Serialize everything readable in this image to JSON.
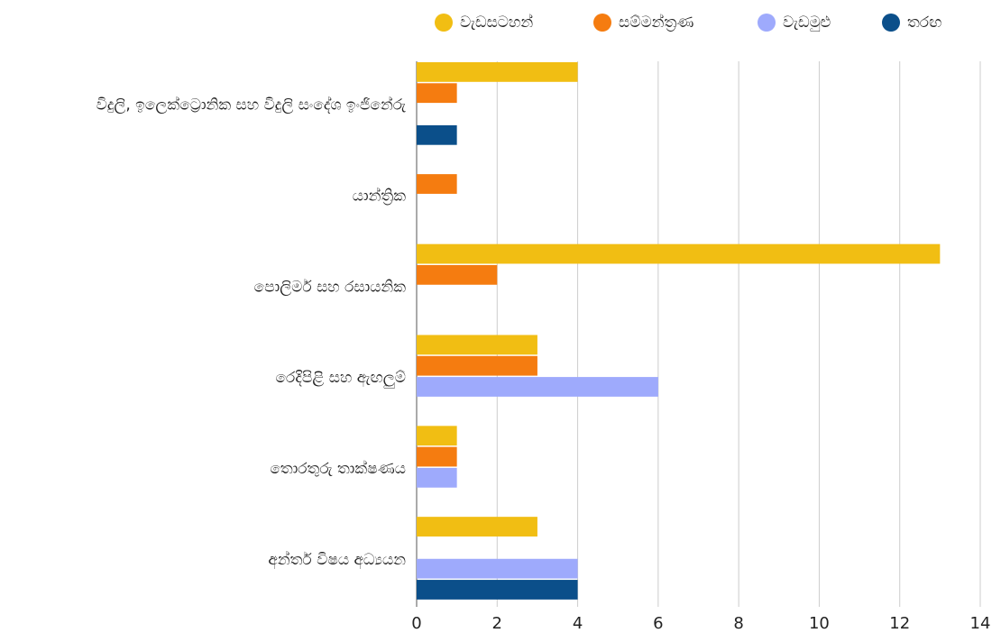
{
  "chart_data": {
    "type": "bar",
    "orientation": "horizontal",
    "categories": [
      "විදුලි, ඉලෙක්ට්‍රොනික සහ විදුලි සංදේශ ඉංජිනේරු",
      "යාන්ත්‍රික",
      "පොලිමර් සහ රසායනික",
      "රෙදිපිළි සහ ඇඟලුම්",
      "තොරතුරු තාක්ෂණය",
      "අන්තර් විෂය අධ්‍යයන"
    ],
    "series": [
      {
        "name": "වැඩසටහන්",
        "color": "#f1be13",
        "values": [
          4,
          null,
          13,
          3,
          1,
          3
        ]
      },
      {
        "name": "සම්මන්ත්‍රණ",
        "color": "#f57c10",
        "values": [
          1,
          1,
          2,
          3,
          1,
          null
        ]
      },
      {
        "name": "වැඩමුළු",
        "color": "#9eaafc",
        "values": [
          null,
          null,
          null,
          6,
          1,
          4
        ]
      },
      {
        "name": "තරඟ",
        "color": "#0b4f8a",
        "values": [
          1,
          null,
          null,
          null,
          null,
          4
        ]
      }
    ],
    "xlim": [
      0,
      14
    ],
    "xticks": [
      0,
      2,
      4,
      6,
      8,
      10,
      12,
      14
    ],
    "grid": true,
    "legend": "top"
  }
}
